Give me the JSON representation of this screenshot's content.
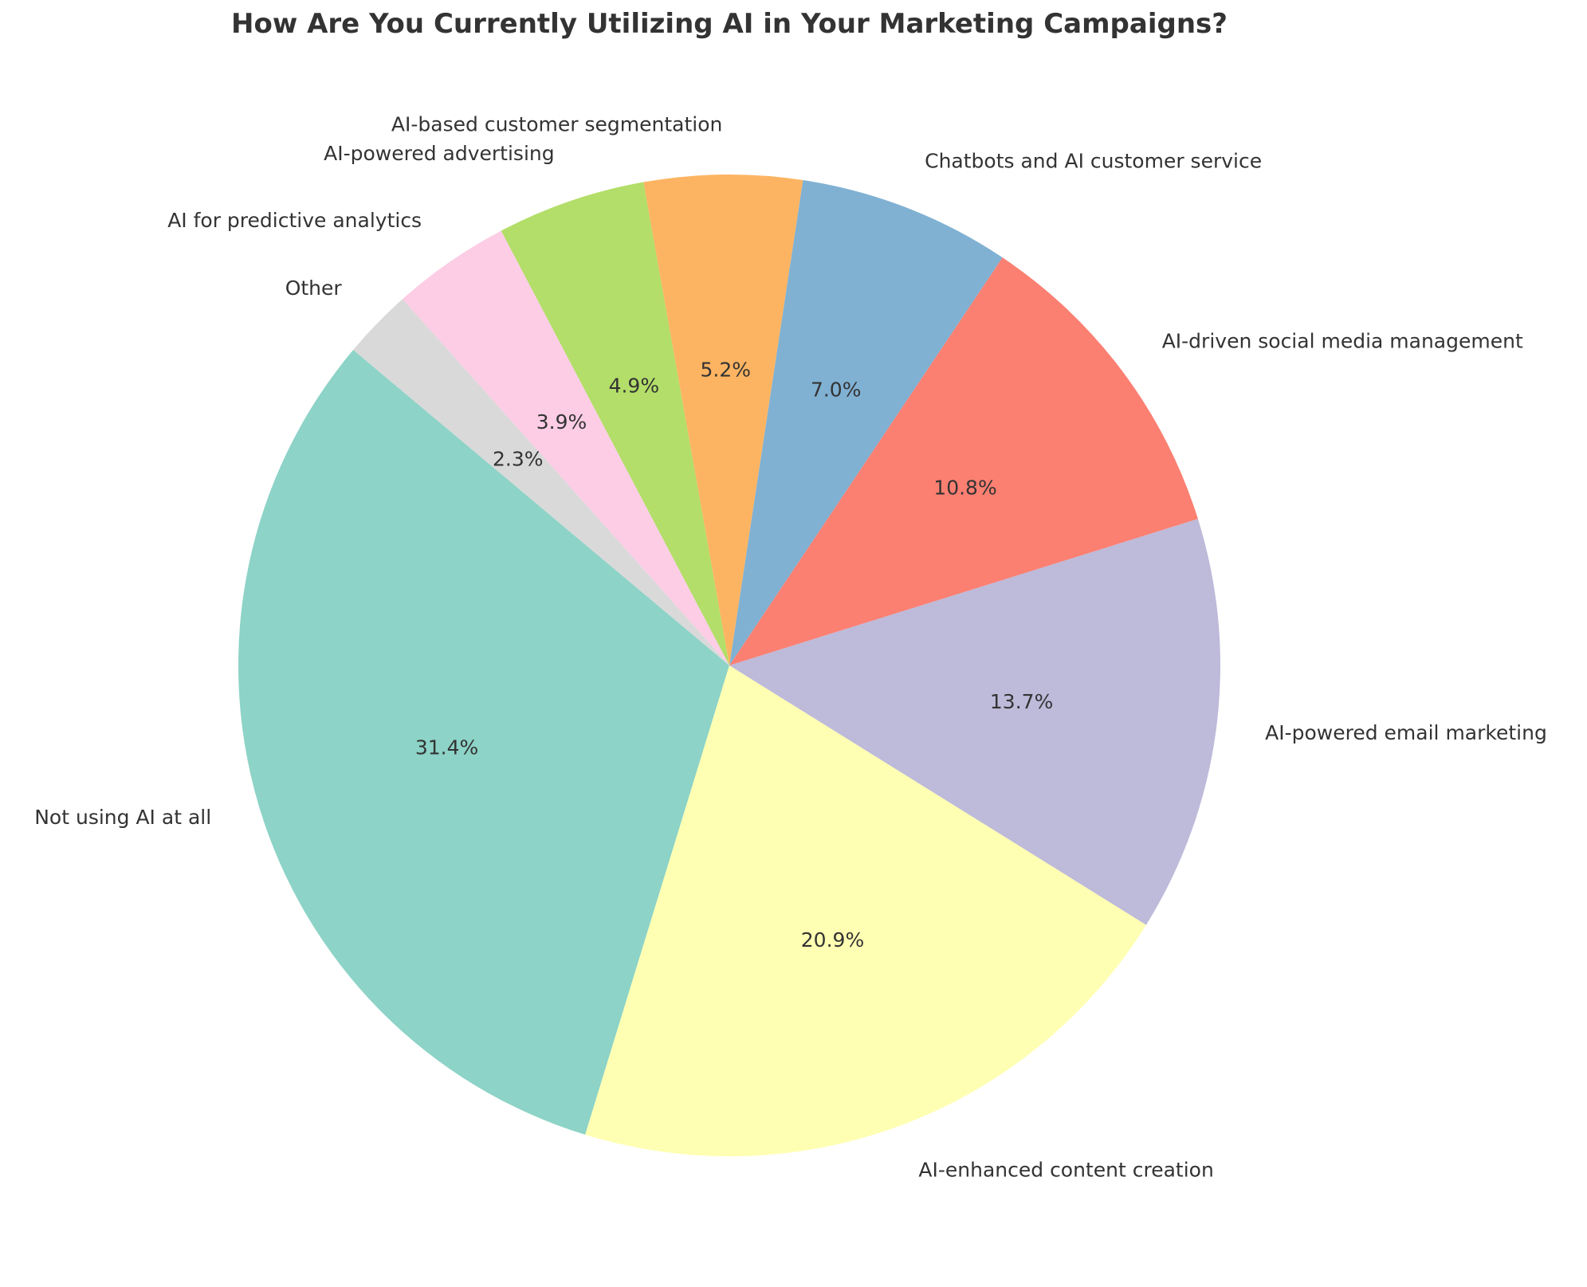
{
  "chart_data": {
    "type": "pie",
    "title": "How Are You Currently Utilizing AI in Your Marketing Campaigns?",
    "start_angle_deg": 140,
    "direction": "counterclockwise",
    "slices": [
      {
        "label": "Not using AI at all",
        "value": 31.4,
        "pct_label": "31.4%",
        "color": "#8dd3c7"
      },
      {
        "label": "AI-enhanced content creation",
        "value": 20.9,
        "pct_label": "20.9%",
        "color": "#ffffb3"
      },
      {
        "label": "AI-powered email marketing",
        "value": 13.7,
        "pct_label": "13.7%",
        "color": "#bebada"
      },
      {
        "label": "AI-driven social media management",
        "value": 10.8,
        "pct_label": "10.8%",
        "color": "#fb8072"
      },
      {
        "label": "Chatbots and AI customer service",
        "value": 7.0,
        "pct_label": "7.0%",
        "color": "#80b1d3"
      },
      {
        "label": "AI-based customer segmentation",
        "value": 5.2,
        "pct_label": "5.2%",
        "color": "#fdb462"
      },
      {
        "label": "AI-powered advertising",
        "value": 4.9,
        "pct_label": "4.9%",
        "color": "#b3de69"
      },
      {
        "label": "AI for predictive analytics",
        "value": 3.9,
        "pct_label": "3.9%",
        "color": "#fccde5"
      },
      {
        "label": "Other",
        "value": 2.3,
        "pct_label": "2.3%",
        "color": "#d9d9d9"
      }
    ]
  }
}
